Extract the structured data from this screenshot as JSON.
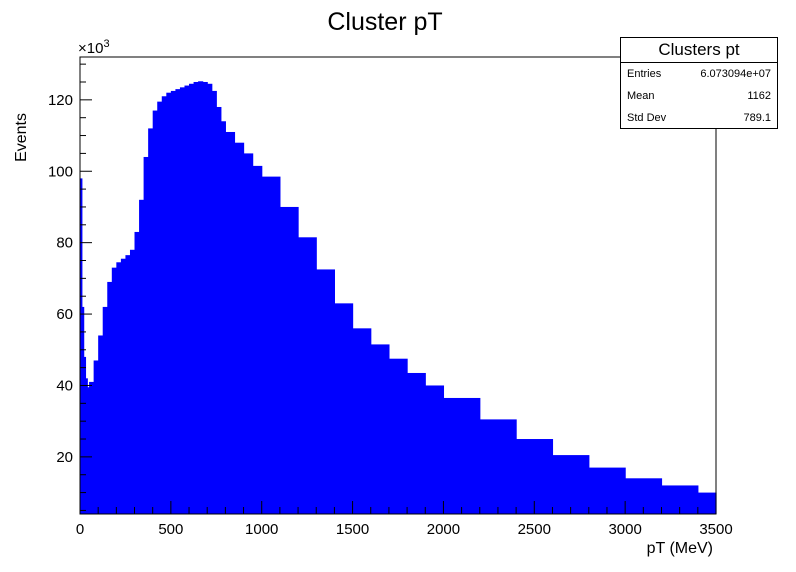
{
  "chart_data": {
    "type": "bar",
    "title": "Cluster pT",
    "xlabel": "pT (MeV)",
    "ylabel": "Events",
    "y_scale_label": "×10³",
    "y_multiplier": 1000,
    "xlim": [
      0,
      3500
    ],
    "ylim": [
      4000,
      132000
    ],
    "x_ticks": [
      0,
      500,
      1000,
      1500,
      2000,
      2500,
      3000,
      3500
    ],
    "y_ticks": [
      20,
      40,
      60,
      80,
      100,
      120
    ],
    "fill_color": "#0000ff",
    "legend_position": "top-right",
    "grid": false,
    "series": [
      {
        "x": [
          0,
          10,
          20,
          30,
          40,
          50,
          75,
          100,
          125,
          150,
          175,
          200,
          225,
          250,
          275,
          300,
          325,
          350,
          375,
          400,
          425,
          450,
          475,
          500,
          525,
          550,
          575,
          600,
          625,
          650,
          675,
          700,
          725,
          750,
          775,
          800,
          850,
          900,
          950,
          1000,
          1100,
          1200,
          1300,
          1400,
          1500,
          1600,
          1700,
          1800,
          1900,
          2000,
          2200,
          2400,
          2600,
          2800,
          3000,
          3200,
          3400,
          3500
        ],
        "values": [
          98000,
          62000,
          48000,
          42000,
          39500,
          41000,
          47000,
          54000,
          62000,
          69000,
          73000,
          74500,
          75500,
          76500,
          78000,
          83000,
          92000,
          104000,
          112000,
          117000,
          119500,
          121000,
          122000,
          122500,
          123000,
          123500,
          124000,
          124500,
          125000,
          125200,
          125000,
          124500,
          122500,
          118000,
          114000,
          111000,
          108000,
          105000,
          101500,
          98500,
          90000,
          81500,
          72500,
          63000,
          56000,
          51500,
          47500,
          43500,
          40000,
          36500,
          30500,
          25000,
          20500,
          17000,
          14000,
          12000,
          10000,
          9500
        ]
      }
    ]
  },
  "stats": {
    "title": "Clusters pt",
    "rows": [
      {
        "label": "Entries",
        "value": "6.073094e+07"
      },
      {
        "label": "Mean",
        "value": "1162"
      },
      {
        "label": "Std Dev",
        "value": "789.1"
      }
    ]
  }
}
